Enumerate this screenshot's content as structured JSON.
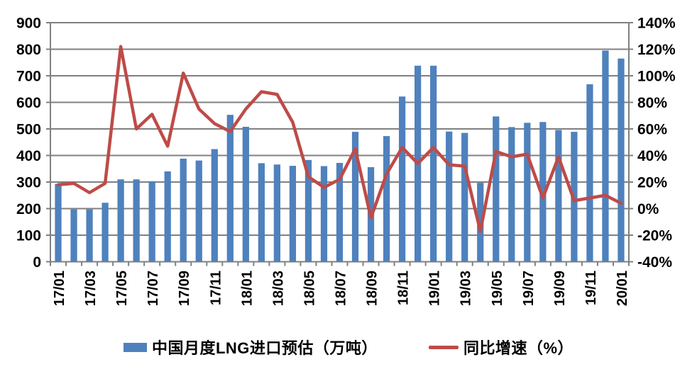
{
  "chart_data": {
    "type": "combo-bar-line",
    "title": "",
    "categories": [
      "17/01",
      "17/02",
      "17/03",
      "17/04",
      "17/05",
      "17/06",
      "17/07",
      "17/08",
      "17/09",
      "17/10",
      "17/11",
      "17/12",
      "18/01",
      "18/02",
      "18/03",
      "18/04",
      "18/05",
      "18/06",
      "18/07",
      "18/08",
      "18/09",
      "18/10",
      "18/11",
      "18/12",
      "19/01",
      "19/02",
      "19/03",
      "19/04",
      "19/05",
      "19/06",
      "19/07",
      "19/08",
      "19/09",
      "19/10",
      "19/11",
      "19/12",
      "20/01"
    ],
    "x_tick_label_every": 2,
    "x_tick_labels_shown": [
      "17/01",
      "17/03",
      "17/05",
      "17/07",
      "17/09",
      "17/11",
      "18/01",
      "18/03",
      "18/05",
      "18/07",
      "18/09",
      "18/11",
      "19/01",
      "19/03",
      "19/05",
      "19/07",
      "19/09",
      "19/11",
      "20/01"
    ],
    "series": [
      {
        "name": "中国月度LNG进口预估（万吨）",
        "type": "bar",
        "axis": "left",
        "color": "#4F81BD",
        "values": [
          293,
          197,
          197,
          222,
          310,
          310,
          303,
          340,
          388,
          381,
          424,
          553,
          508,
          371,
          366,
          361,
          383,
          360,
          372,
          489,
          356,
          473,
          622,
          738,
          738,
          490,
          485,
          297,
          547,
          507,
          523,
          526,
          496,
          489,
          668,
          795,
          765
        ]
      },
      {
        "name": "同比增速（%）",
        "type": "line",
        "axis": "right",
        "color": "#BE4B48",
        "values": [
          18,
          19,
          12,
          19,
          122,
          60,
          71,
          47,
          102,
          75,
          64,
          58,
          75,
          88,
          86,
          65,
          24,
          16,
          22,
          45,
          -7,
          26,
          46,
          34,
          46,
          33,
          32,
          -17,
          43,
          39,
          41,
          8,
          39,
          6,
          8,
          10,
          4
        ]
      }
    ],
    "left_axis": {
      "min": 0,
      "max": 900,
      "step": 100,
      "tick_labels": [
        "0",
        "100",
        "200",
        "300",
        "400",
        "500",
        "600",
        "700",
        "800",
        "900"
      ]
    },
    "right_axis": {
      "min": -40,
      "max": 140,
      "step": 20,
      "tick_labels": [
        "-40%",
        "-20%",
        "0%",
        "20%",
        "40%",
        "60%",
        "80%",
        "100%",
        "120%",
        "140%"
      ]
    },
    "grid": true,
    "legend_position": "bottom",
    "colors": {
      "bar": "#4F81BD",
      "line": "#BE4B48",
      "gridline": "#808080",
      "tick_text": "#000000",
      "background": "#FFFFFF"
    }
  },
  "legend": {
    "bar_label": "中国月度LNG进口预估（万吨）",
    "line_label": "同比增速（%）"
  }
}
